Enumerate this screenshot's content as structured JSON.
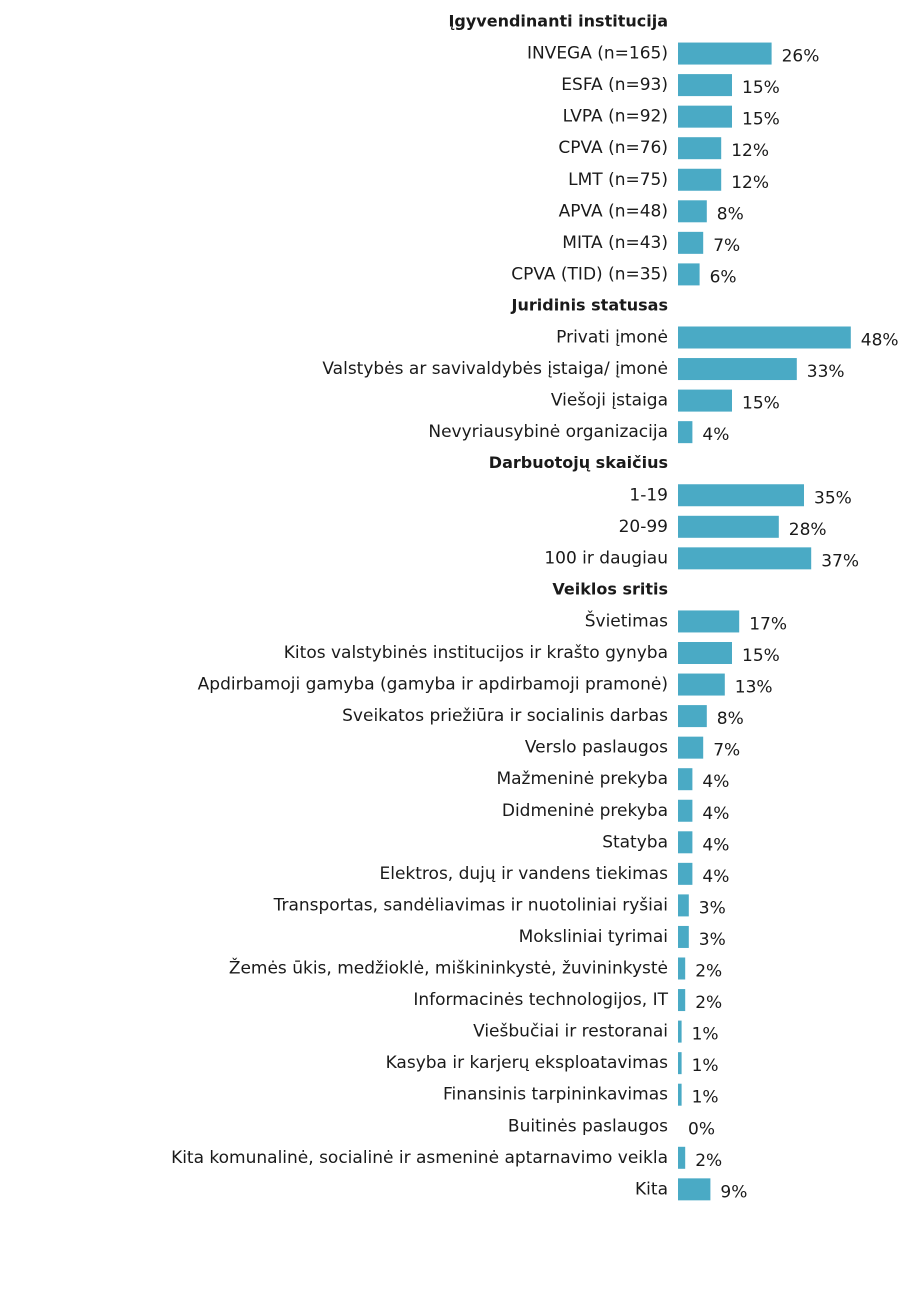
{
  "chart_data": {
    "type": "bar",
    "orientation": "horizontal",
    "color": "#4aaac5",
    "groups": [
      {
        "name": "Įgyvendinanti institucija",
        "categories": [
          "INVEGA (n=165)",
          "ESFA (n=93)",
          "LVPA (n=92)",
          "CPVA (n=76)",
          "LMT (n=75)",
          "APVA (n=48)",
          "MITA (n=43)",
          "CPVA (TID) (n=35)"
        ],
        "values": [
          26,
          15,
          15,
          12,
          12,
          8,
          7,
          6
        ],
        "value_labels": [
          "26%",
          "15%",
          "15%",
          "12%",
          "12%",
          "8%",
          "7%",
          "6%"
        ]
      },
      {
        "name": "Juridinis statusas",
        "categories": [
          "Privati įmonė",
          "Valstybės ar savivaldybės įstaiga/ įmonė",
          "Viešoji įstaiga",
          "Nevyriausybinė organizacija"
        ],
        "values": [
          48,
          33,
          15,
          4
        ],
        "value_labels": [
          "48%",
          "33%",
          "15%",
          "4%"
        ]
      },
      {
        "name": "Darbuotojų skaičius",
        "categories": [
          "1-19",
          "20-99",
          "100 ir daugiau"
        ],
        "values": [
          35,
          28,
          37
        ],
        "value_labels": [
          "35%",
          "28%",
          "37%"
        ]
      },
      {
        "name": "Veiklos sritis",
        "categories": [
          "Švietimas",
          "Kitos valstybinės institucijos ir krašto gynyba",
          "Apdirbamoji gamyba (gamyba ir apdirbamoji pramonė)",
          "Sveikatos priežiūra ir socialinis darbas",
          "Verslo paslaugos",
          "Mažmeninė prekyba",
          "Didmeninė prekyba",
          "Statyba",
          "Elektros, dujų ir vandens tiekimas",
          "Transportas, sandėliavimas ir nuotoliniai ryšiai",
          "Moksliniai tyrimai",
          "Žemės ūkis, medžioklė, miškininkystė, žuvininkystė",
          "Informacinės technologijos, IT",
          "Viešbučiai ir restoranai",
          "Kasyba ir karjerų eksploatavimas",
          "Finansinis tarpininkavimas",
          "Buitinės paslaugos",
          "Kita komunalinė, socialinė ir asmeninė aptarnavimo veikla",
          "Kita"
        ],
        "values": [
          17,
          15,
          13,
          8,
          7,
          4,
          4,
          4,
          4,
          3,
          3,
          2,
          2,
          1,
          1,
          1,
          0,
          2,
          9
        ],
        "value_labels": [
          "17%",
          "15%",
          "13%",
          "8%",
          "7%",
          "4%",
          "4%",
          "4%",
          "4%",
          "3%",
          "3%",
          "2%",
          "2%",
          "1%",
          "1%",
          "1%",
          "0%",
          "2%",
          "9%"
        ]
      }
    ]
  }
}
